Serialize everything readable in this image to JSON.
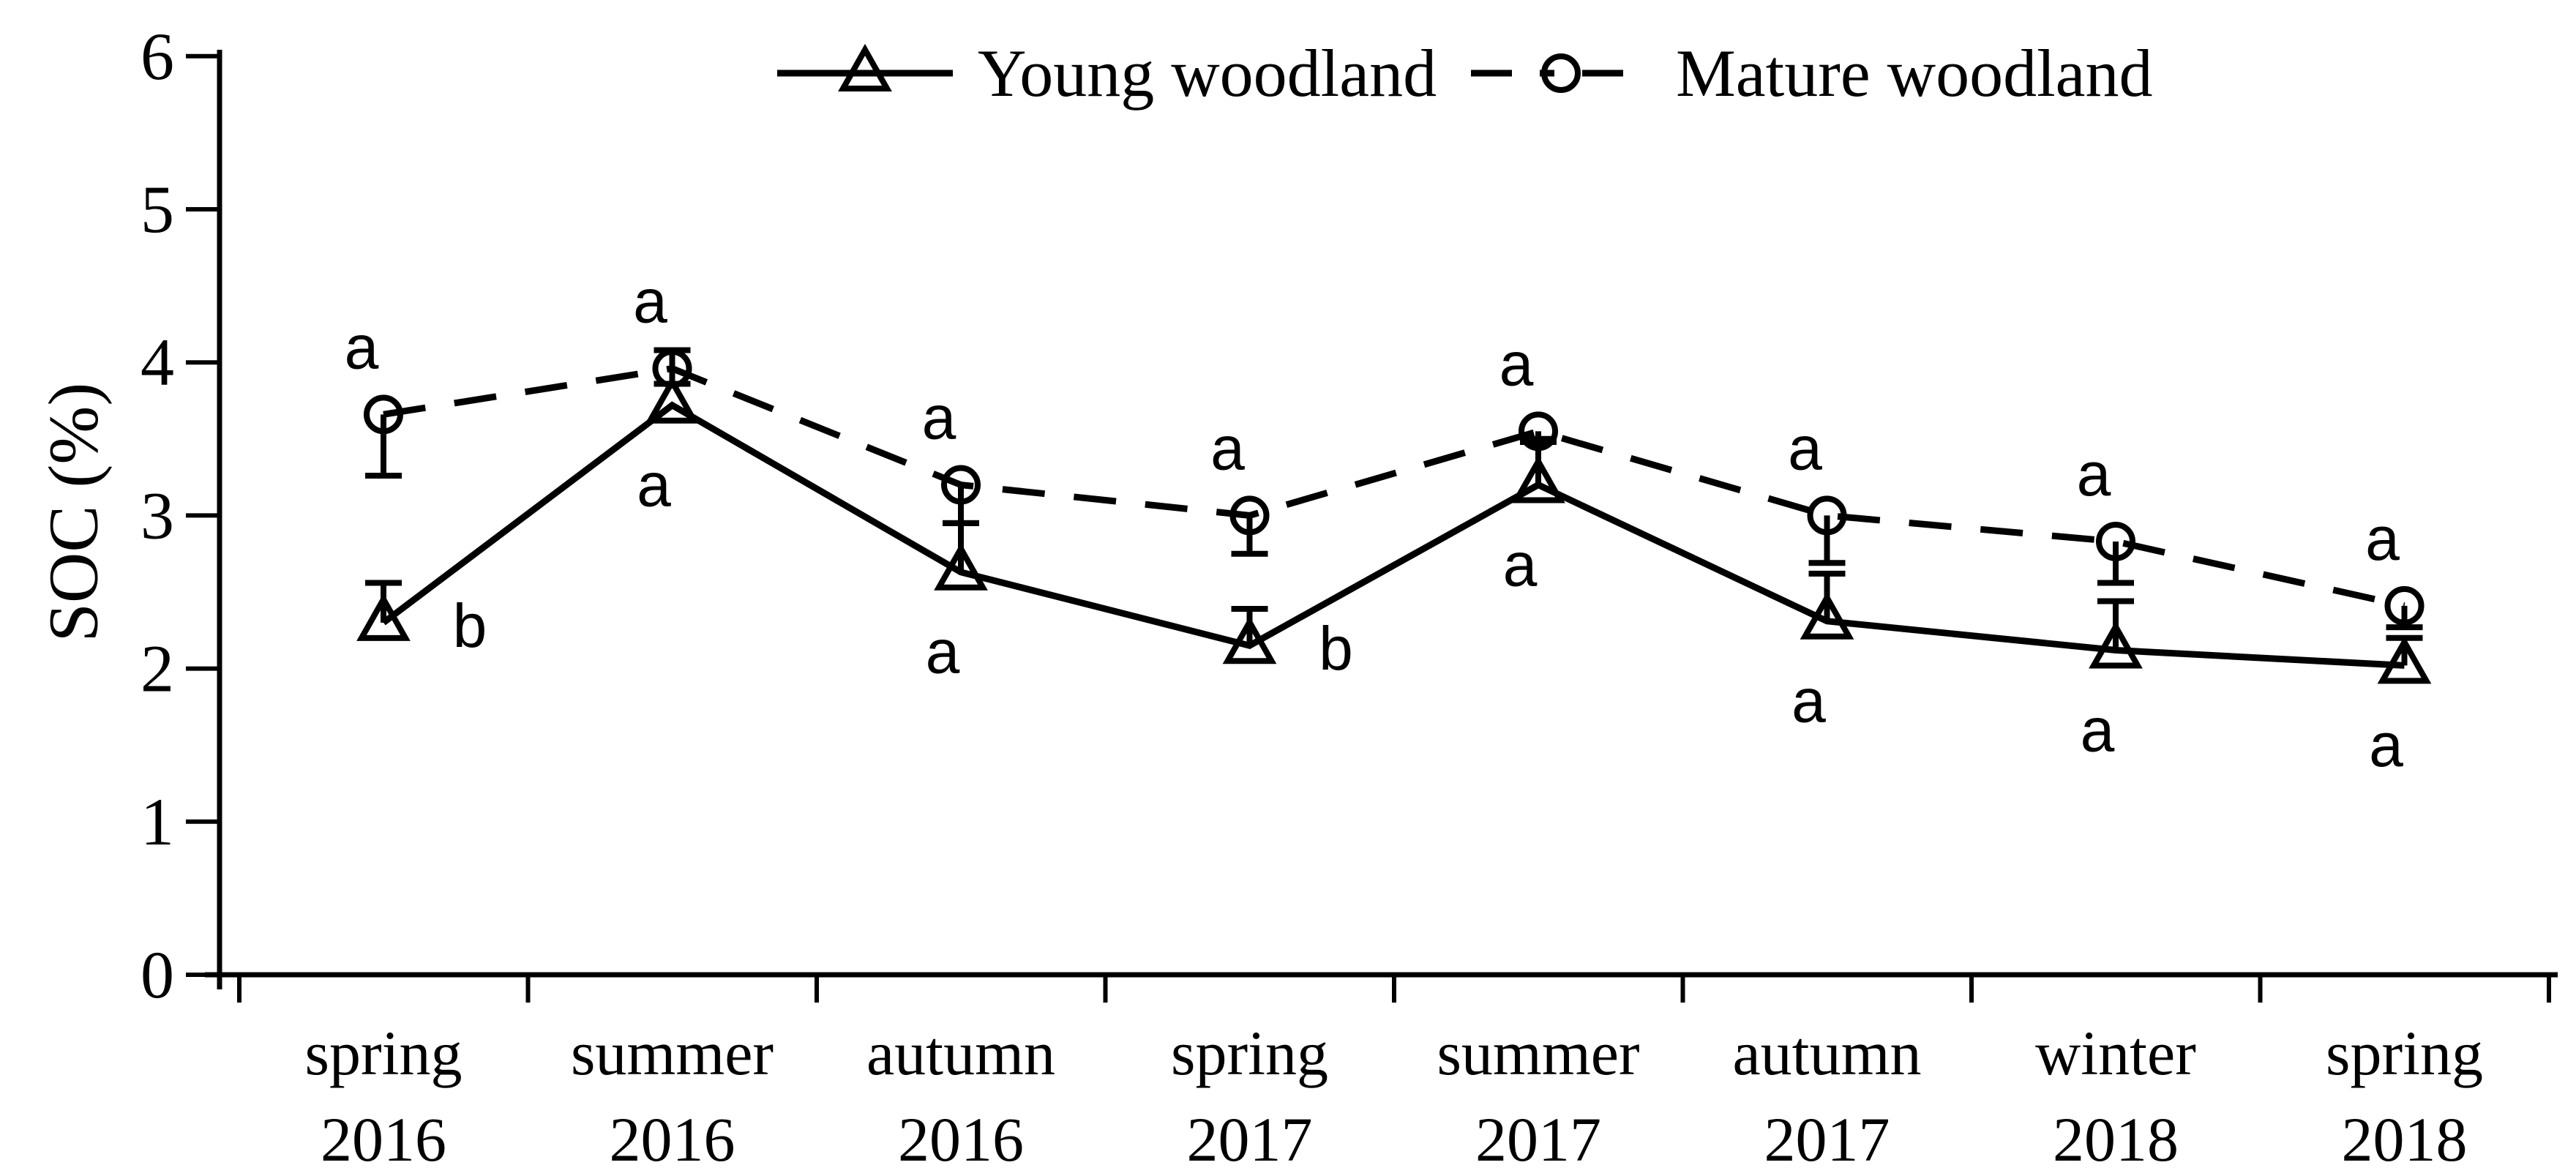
{
  "figure": {
    "background": "#ffffff",
    "ink": "#000000"
  },
  "chart_data": {
    "type": "line",
    "title": "",
    "xlabel": "",
    "ylabel": "SOC (%)",
    "ylim": [
      0,
      6
    ],
    "yticks": [
      "0",
      "1",
      "2",
      "3",
      "4",
      "5",
      "6"
    ],
    "grid": false,
    "legend_position": "top-center",
    "categories": [
      {
        "season": "spring",
        "year": "2016"
      },
      {
        "season": "summer",
        "year": "2016"
      },
      {
        "season": "autumn",
        "year": "2016"
      },
      {
        "season": "spring",
        "year": "2017"
      },
      {
        "season": "summer",
        "year": "2017"
      },
      {
        "season": "autumn",
        "year": "2017"
      },
      {
        "season": "winter",
        "year": "2018"
      },
      {
        "season": "spring",
        "year": "2018"
      }
    ],
    "series": [
      {
        "name": "Mature woodland",
        "marker": "circle",
        "line_style": "dashed",
        "values": [
          3.66,
          3.96,
          3.2,
          3.0,
          3.55,
          3.0,
          2.83,
          2.41
        ],
        "err_up": [
          0,
          0.12,
          0,
          0,
          0,
          0,
          0,
          0
        ],
        "err_down": [
          0.4,
          0.1,
          0.25,
          0.25,
          0.07,
          0.31,
          0.27,
          0.14
        ],
        "sig_letters": [
          "a",
          "a",
          "a",
          "a",
          "a",
          "a",
          "a",
          "a"
        ],
        "sig_positions": [
          "above",
          "above",
          "above",
          "above",
          "above",
          "above",
          "above",
          "above"
        ]
      },
      {
        "name": "Young woodland",
        "marker": "triangle",
        "line_style": "solid",
        "values": [
          2.3,
          3.72,
          2.63,
          2.15,
          3.2,
          2.31,
          2.12,
          2.02
        ],
        "err_up": [
          0.26,
          0,
          0.32,
          0.24,
          0.3,
          0.31,
          0.32,
          0.18
        ],
        "err_down": [
          0,
          0,
          0,
          0,
          0,
          0,
          0,
          0
        ],
        "sig_letters": [
          "b",
          "a",
          "a",
          "b",
          "a",
          "a",
          "a",
          "a"
        ],
        "sig_positions": [
          "right",
          "below",
          "below",
          "right",
          "below",
          "below",
          "below",
          "below"
        ]
      }
    ],
    "legend_entries": [
      "Young woodland",
      "Mature woodland"
    ]
  }
}
